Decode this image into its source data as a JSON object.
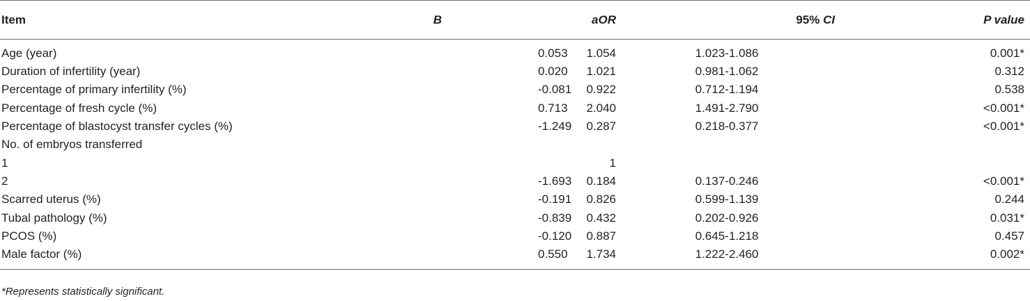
{
  "table": {
    "headers": {
      "item": "Item",
      "b": "B",
      "aor": "aOR",
      "ci_prefix": "95% ",
      "ci_italic": "CI",
      "p": "P value"
    },
    "rows": [
      {
        "item": "Age (year)",
        "b": "0.053",
        "aor": "1.054",
        "ci": "1.023-1.086",
        "p": "0.001*"
      },
      {
        "item": "Duration of infertility (year)",
        "b": "0.020",
        "aor": "1.021",
        "ci": "0.981-1.062",
        "p": "0.312"
      },
      {
        "item": "Percentage of primary infertility (%)",
        "b": "-0.081",
        "aor": "0.922",
        "ci": "0.712-1.194",
        "p": "0.538"
      },
      {
        "item": "Percentage of fresh cycle (%)",
        "b": "0.713",
        "aor": "2.040",
        "ci": "1.491-2.790",
        "p": "<0.001*"
      },
      {
        "item": "Percentage of blastocyst transfer cycles (%)",
        "b": "-1.249",
        "aor": "0.287",
        "ci": "0.218-0.377",
        "p": "<0.001*"
      },
      {
        "item": "No. of embryos transferred",
        "b": "",
        "aor": "",
        "ci": "",
        "p": ""
      },
      {
        "item": "1",
        "b": "",
        "aor": "1",
        "ci": "",
        "p": ""
      },
      {
        "item": "2",
        "b": "-1.693",
        "aor": "0.184",
        "ci": "0.137-0.246",
        "p": "<0.001*"
      },
      {
        "item": "Scarred uterus (%)",
        "b": "-0.191",
        "aor": "0.826",
        "ci": "0.599-1.139",
        "p": "0.244"
      },
      {
        "item": "Tubal pathology (%)",
        "b": "-0.839",
        "aor": "0.432",
        "ci": "0.202-0.926",
        "p": "0.031*"
      },
      {
        "item": "PCOS (%)",
        "b": "-0.120",
        "aor": "0.887",
        "ci": "0.645-1.218",
        "p": "0.457"
      },
      {
        "item": "Male factor (%)",
        "b": "0.550",
        "aor": "1.734",
        "ci": "1.222-2.460",
        "p": "0.002*"
      }
    ]
  },
  "footnote": "*Represents statistically significant."
}
